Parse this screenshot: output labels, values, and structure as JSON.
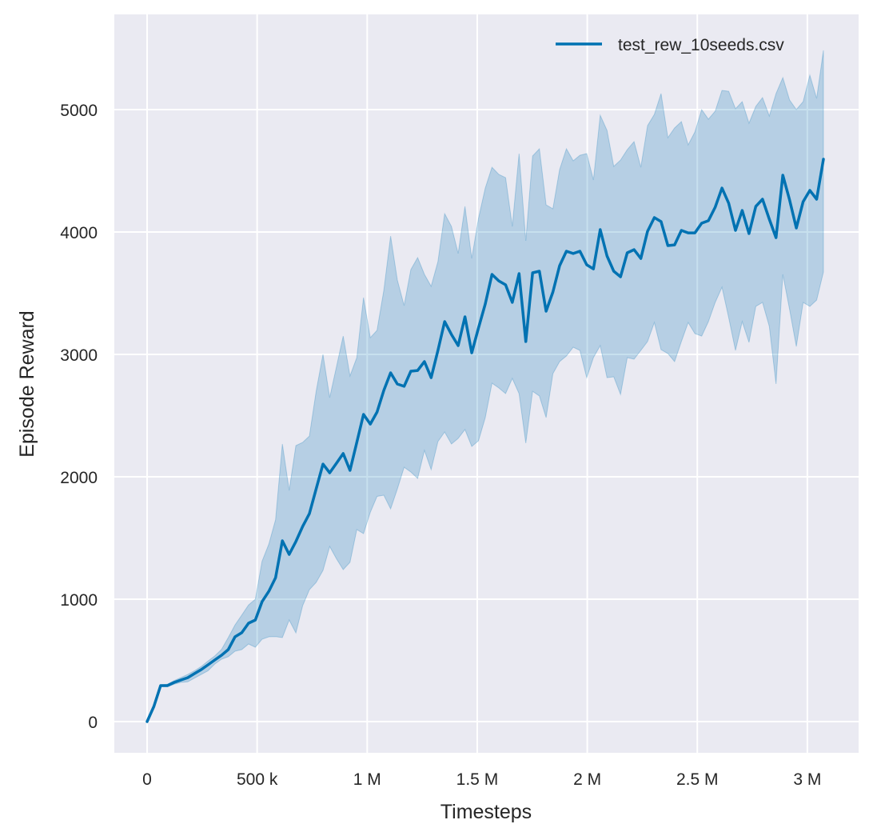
{
  "chart_data": {
    "type": "line",
    "title": "",
    "xlabel": "Timesteps",
    "ylabel": "Episode Reward",
    "xlim": [
      -149000,
      3233000
    ],
    "ylim": [
      -255,
      5778
    ],
    "grid": true,
    "legend_placement": "top-right",
    "colors": {
      "background": "#eaeaf2",
      "grid": "#ffffff",
      "line": "#0072b2",
      "band": "#0072b2"
    },
    "x_ticks": [
      0,
      500000,
      1000000,
      1500000,
      2000000,
      2500000,
      3000000
    ],
    "x_tick_labels": [
      "0",
      "500 k",
      "1 M",
      "1.5 M",
      "2 M",
      "2.5 M",
      "3 M"
    ],
    "y_ticks": [
      0,
      1000,
      2000,
      3000,
      4000,
      5000
    ],
    "y_tick_labels": [
      "0",
      "1000",
      "2000",
      "3000",
      "4000",
      "5000"
    ],
    "x": [
      0,
      30730,
      61460,
      92190,
      122920,
      153650,
      184380,
      215110,
      245840,
      276570,
      307300,
      338030,
      368760,
      399490,
      430220,
      460950,
      491680,
      522410,
      553140,
      583870,
      614600,
      645330,
      676060,
      706790,
      737520,
      768250,
      798980,
      829710,
      860440,
      891170,
      921900,
      952630,
      983360,
      1014090,
      1044820,
      1075550,
      1106280,
      1137010,
      1167740,
      1198470,
      1229200,
      1259930,
      1290660,
      1321390,
      1352120,
      1382850,
      1413580,
      1444310,
      1475040,
      1505770,
      1536500,
      1567230,
      1597960,
      1628690,
      1659420,
      1690150,
      1720880,
      1751610,
      1782340,
      1813070,
      1843800,
      1874530,
      1905260,
      1935990,
      1966720,
      1997450,
      2028180,
      2058910,
      2089640,
      2120370,
      2151100,
      2181830,
      2212560,
      2243290,
      2274020,
      2304750,
      2335480,
      2366210,
      2396940,
      2427670,
      2458400,
      2489130,
      2519860,
      2550590,
      2581320,
      2612050,
      2642780,
      2673510,
      2704240,
      2734970,
      2765700,
      2796430,
      2827160,
      2857890,
      2888620,
      2919350,
      2950080,
      2980810,
      3011540,
      3042270,
      3073000
    ],
    "series": [
      {
        "name": "test_rew_10seeds.csv",
        "mean": [
          0,
          124,
          294,
          294,
          320,
          340,
          359,
          392,
          425,
          464,
          503,
          542,
          588,
          693,
          726,
          804,
          830,
          980,
          1065,
          1176,
          1477,
          1366,
          1471,
          1595,
          1699,
          1902,
          2104,
          2033,
          2111,
          2190,
          2052,
          2281,
          2510,
          2431,
          2529,
          2706,
          2850,
          2758,
          2739,
          2863,
          2869,
          2941,
          2810,
          3033,
          3268,
          3163,
          3072,
          3307,
          3013,
          3216,
          3412,
          3654,
          3601,
          3569,
          3425,
          3660,
          3105,
          3667,
          3680,
          3353,
          3510,
          3725,
          3843,
          3824,
          3843,
          3732,
          3699,
          4020,
          3804,
          3680,
          3634,
          3830,
          3856,
          3784,
          4006,
          4118,
          4085,
          3889,
          3895,
          4013,
          3993,
          3993,
          4072,
          4092,
          4203,
          4359,
          4235,
          4013,
          4176,
          3987,
          4209,
          4268,
          4105,
          3954,
          4464,
          4261,
          4033,
          4248,
          4340,
          4268,
          4595
        ],
        "upper": [
          0,
          130,
          300,
          305,
          335,
          360,
          385,
          415,
          450,
          495,
          536,
          590,
          686,
          790,
          870,
          953,
          1000,
          1310,
          1450,
          1650,
          2268,
          1889,
          2255,
          2281,
          2333,
          2700,
          3000,
          2647,
          2900,
          3150,
          2824,
          2974,
          3464,
          3137,
          3196,
          3523,
          3967,
          3608,
          3399,
          3693,
          3791,
          3654,
          3556,
          3758,
          4150,
          4046,
          3824,
          4209,
          3784,
          4111,
          4359,
          4529,
          4471,
          4444,
          4046,
          4641,
          3928,
          4621,
          4680,
          4222,
          4190,
          4510,
          4680,
          4582,
          4627,
          4641,
          4425,
          4954,
          4830,
          4536,
          4588,
          4673,
          4739,
          4529,
          4869,
          4961,
          5131,
          4771,
          4850,
          4902,
          4712,
          4817,
          5000,
          4922,
          4987,
          5157,
          5150,
          5007,
          5065,
          4889,
          5026,
          5098,
          4948,
          5131,
          5261,
          5078,
          5000,
          5065,
          5281,
          5092,
          5484
        ],
        "lower": [
          0,
          118,
          285,
          285,
          305,
          320,
          325,
          355,
          385,
          415,
          470,
          510,
          530,
          575,
          588,
          634,
          608,
          673,
          693,
          695,
          686,
          830,
          725,
          948,
          1078,
          1137,
          1235,
          1431,
          1330,
          1242,
          1301,
          1569,
          1536,
          1710,
          1840,
          1850,
          1738,
          1900,
          2078,
          2039,
          1987,
          2216,
          2059,
          2288,
          2366,
          2268,
          2314,
          2386,
          2248,
          2294,
          2484,
          2765,
          2726,
          2680,
          2804,
          2680,
          2275,
          2699,
          2660,
          2484,
          2843,
          2941,
          2987,
          3059,
          3033,
          2810,
          2974,
          3072,
          2810,
          2817,
          2673,
          2974,
          2961,
          3033,
          3105,
          3261,
          3039,
          3007,
          2941,
          3105,
          3261,
          3170,
          3150,
          3268,
          3425,
          3549,
          3301,
          3033,
          3268,
          3098,
          3392,
          3425,
          3229,
          2758,
          3654,
          3366,
          3065,
          3425,
          3392,
          3444,
          3673
        ]
      }
    ]
  }
}
